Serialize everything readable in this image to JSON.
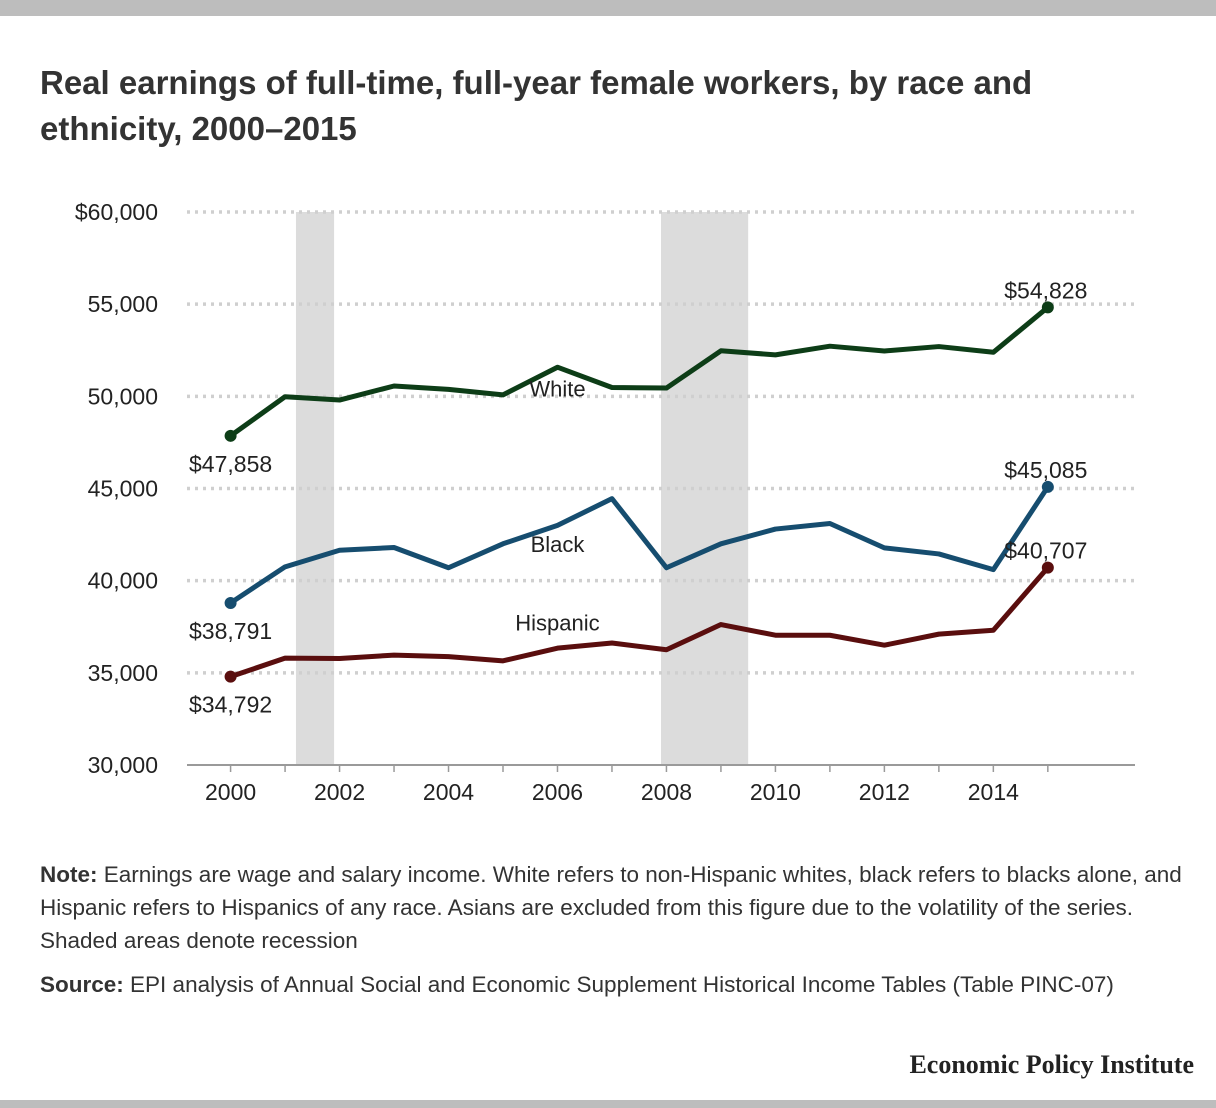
{
  "title": "Real earnings of full-time, full-year female workers, by race and ethnicity, 2000–2015",
  "note_label": "Note:",
  "note_text": " Earnings are wage and salary income. White refers to non-Hispanic whites, black refers to blacks alone, and Hispanic refers to Hispanics of any race. Asians are excluded from this figure due to the volatility of the series. Shaded areas denote recession",
  "source_label": "Source:",
  "source_text": " EPI analysis of Annual Social and Economic Supplement Historical Income Tables (Table PINC-07)",
  "brand": "Economic Policy Institute",
  "chart_data": {
    "type": "line",
    "title": "Real earnings of full-time, full-year female workers, by race and ethnicity, 2000–2015",
    "xlabel": "",
    "ylabel": "",
    "x": [
      2000,
      2001,
      2002,
      2003,
      2004,
      2005,
      2006,
      2007,
      2008,
      2009,
      2010,
      2011,
      2012,
      2013,
      2014,
      2015
    ],
    "xticks": [
      2000,
      2002,
      2004,
      2006,
      2008,
      2010,
      2012,
      2014
    ],
    "xtick_labels": [
      "2000",
      "2002",
      "2004",
      "2006",
      "2008",
      "2010",
      "2012",
      "2014"
    ],
    "xlim": [
      1999.2,
      2016.6
    ],
    "ylim": [
      30000,
      60000
    ],
    "yticks": [
      30000,
      35000,
      40000,
      45000,
      50000,
      55000,
      60000
    ],
    "ytick_labels": [
      "30,000",
      "35,000",
      "40,000",
      "45,000",
      "50,000",
      "55,000",
      "$60,000"
    ],
    "grid": true,
    "recessions": [
      [
        2001.2,
        2001.9
      ],
      [
        2007.9,
        2009.5
      ]
    ],
    "series": [
      {
        "name": "White",
        "color": "#0d3d17",
        "values": [
          47858,
          49980,
          49800,
          50560,
          50380,
          50080,
          51580,
          50480,
          50450,
          52470,
          52250,
          52720,
          52460,
          52700,
          52390,
          54828
        ],
        "label_x": 2006.0,
        "label_y": 50000,
        "start_label": "$47,858",
        "end_label": "$54,828"
      },
      {
        "name": "Black",
        "color": "#164d6f",
        "values": [
          38791,
          40750,
          41650,
          41800,
          40700,
          42000,
          43000,
          44450,
          40700,
          42000,
          42800,
          43100,
          41780,
          41450,
          40600,
          45085
        ],
        "label_x": 2006.0,
        "label_y": 41550,
        "start_label": "$38,791",
        "end_label": "$45,085"
      },
      {
        "name": "Hispanic",
        "color": "#5a0e0e",
        "values": [
          34792,
          35800,
          35780,
          35960,
          35880,
          35650,
          36340,
          36620,
          36250,
          37620,
          37040,
          37040,
          36500,
          37100,
          37310,
          40707
        ],
        "label_x": 2006.0,
        "label_y": 37300,
        "start_label": "$34,792",
        "end_label": "$40,707"
      }
    ]
  }
}
